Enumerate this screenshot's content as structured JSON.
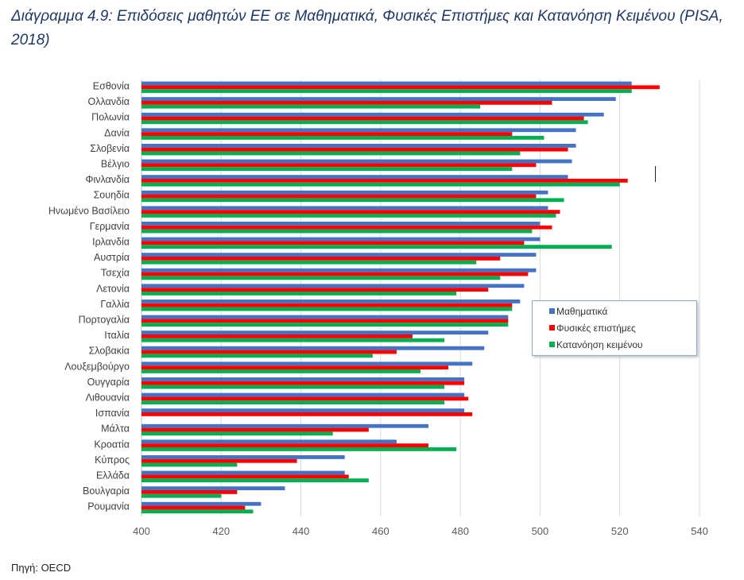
{
  "title": "Διάγραμμα 4.9: Επιδόσεις μαθητών ΕΕ σε Μαθηματικά, Φυσικές Επιστήμες και Κατανόηση Κειμένου (PISA, 2018)",
  "source": "Πηγή: OECD",
  "colors": {
    "math": "#4472c4",
    "science": "#ff0000",
    "reading": "#00b050",
    "grid": "#d9d9d9"
  },
  "legend": {
    "math": "Μαθηματικά",
    "science": "Φυσικές επιστήμες",
    "reading": "Κατανόηση κειμένου"
  },
  "chart_data": {
    "type": "bar",
    "orientation": "horizontal",
    "title": "Διάγραμμα 4.9: Επιδόσεις μαθητών ΕΕ σε Μαθηματικά, Φυσικές Επιστήμες και Κατανόηση Κειμένου (PISA, 2018)",
    "xlim": [
      400,
      540
    ],
    "xticks": [
      400,
      420,
      440,
      460,
      480,
      500,
      520,
      540
    ],
    "grid": true,
    "legend_position": "right-middle",
    "categories": [
      "Εσθονία",
      "Ολλανδία",
      "Πολωνία",
      "Δανία",
      "Σλοβενία",
      "Βέλγιο",
      "Φινλανδία",
      "Σουηδία",
      "Ηνωμένο Βασίλειο",
      "Γερμανία",
      "Ιρλανδία",
      "Αυστρία",
      "Τσεχία",
      "Λετονία",
      "Γαλλία",
      "Πορτογαλία",
      "Ιταλία",
      "Σλοβακία",
      "Λουξεμβούργο",
      "Ουγγαρία",
      "Λιθουανία",
      "Ισπανία",
      "Μάλτα",
      "Κροατία",
      "Κύπρος",
      "Ελλάδα",
      "Βουλγαρία",
      "Ρουμανία"
    ],
    "series": [
      {
        "name": "Μαθηματικά",
        "values": [
          523,
          519,
          516,
          509,
          509,
          508,
          507,
          502,
          502,
          500,
          500,
          499,
          499,
          496,
          495,
          492,
          487,
          486,
          483,
          481,
          481,
          481,
          472,
          464,
          451,
          451,
          436,
          430
        ]
      },
      {
        "name": "Φυσικές επιστήμες",
        "values": [
          530,
          503,
          511,
          493,
          507,
          499,
          522,
          499,
          505,
          503,
          496,
          490,
          497,
          487,
          493,
          492,
          468,
          464,
          477,
          481,
          482,
          483,
          457,
          472,
          439,
          452,
          424,
          426
        ]
      },
      {
        "name": "Κατανόηση κειμένου",
        "values": [
          523,
          485,
          512,
          501,
          495,
          493,
          520,
          506,
          504,
          498,
          518,
          484,
          490,
          479,
          493,
          492,
          476,
          458,
          470,
          476,
          476,
          null,
          448,
          479,
          424,
          457,
          420,
          428
        ]
      }
    ]
  }
}
